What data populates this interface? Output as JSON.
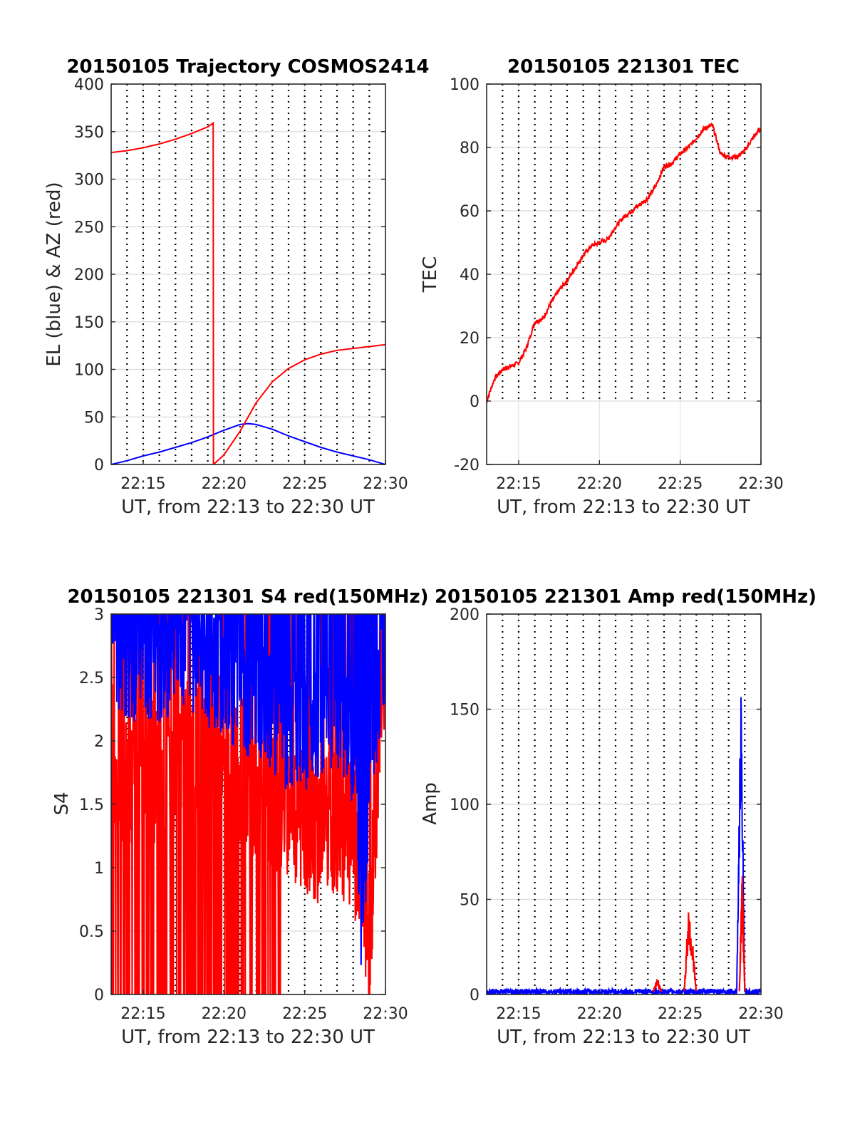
{
  "chart_data": [
    {
      "id": "trajectory",
      "type": "line",
      "title": "20150105 Trajectory COSMOS2414",
      "xlabel": "UT, from 22:13 to 22:30 UT",
      "ylabel": "EL (blue) & AZ (red)",
      "xlim": [
        "22:13:01",
        "22:30:00"
      ],
      "ylim": [
        0,
        400
      ],
      "yticks": [
        "0",
        "50",
        "100",
        "150",
        "200",
        "250",
        "300",
        "350",
        "400"
      ],
      "xticks": [
        "22:15",
        "22:20",
        "22:25",
        "22:30"
      ],
      "colors": {
        "EL": "#0000ff",
        "AZ": "#ff0000"
      },
      "series": [
        {
          "label": "EL",
          "x": [
            "22:13:01",
            "22:14:00",
            "22:15:00",
            "22:16:00",
            "22:17:00",
            "22:18:00",
            "22:19:00",
            "22:20:00",
            "22:21:00",
            "22:21:30",
            "22:22:00",
            "22:23:00",
            "22:24:00",
            "22:25:00",
            "22:26:00",
            "22:27:00",
            "22:28:00",
            "22:29:00",
            "22:30:00"
          ],
          "y": [
            0,
            4,
            9,
            13,
            18,
            23,
            29,
            36,
            42,
            43,
            42,
            37,
            30,
            24,
            18,
            13,
            9,
            5,
            0
          ]
        },
        {
          "label": "AZ",
          "x": [
            "22:13:01",
            "22:14:00",
            "22:15:00",
            "22:16:00",
            "22:17:00",
            "22:18:00",
            "22:19:00",
            "22:19:20",
            "22:19:21",
            "22:20:00",
            "22:21:00",
            "22:22:00",
            "22:23:00",
            "22:24:00",
            "22:25:00",
            "22:26:00",
            "22:27:00",
            "22:28:00",
            "22:29:00",
            "22:30:00"
          ],
          "y": [
            328,
            330,
            333,
            337,
            342,
            348,
            355,
            359,
            0,
            10,
            35,
            65,
            87,
            101,
            110,
            116,
            120,
            122,
            124,
            126
          ]
        }
      ]
    },
    {
      "id": "tec",
      "type": "line",
      "title": "20150105 221301 TEC",
      "xlabel": "UT, from 22:13 to 22:30 UT",
      "ylabel": "TEC",
      "xlim": [
        "22:13:01",
        "22:30:00"
      ],
      "ylim": [
        -20,
        100
      ],
      "yticks": [
        "-20",
        "0",
        "20",
        "40",
        "60",
        "80",
        "100"
      ],
      "xticks": [
        "22:15",
        "22:20",
        "22:25",
        "22:30"
      ],
      "colors": {
        "TEC": "#ff0000"
      },
      "series": [
        {
          "label": "TEC",
          "x": [
            "22:13:01",
            "22:13:30",
            "22:14:00",
            "22:14:30",
            "22:15:00",
            "22:15:30",
            "22:16:00",
            "22:16:30",
            "22:17:00",
            "22:17:30",
            "22:18:00",
            "22:18:30",
            "22:19:00",
            "22:19:30",
            "22:20:00",
            "22:20:30",
            "22:21:00",
            "22:21:30",
            "22:22:00",
            "22:22:30",
            "22:23:00",
            "22:23:30",
            "22:24:00",
            "22:24:30",
            "22:25:00",
            "22:25:30",
            "22:26:00",
            "22:26:30",
            "22:27:00",
            "22:27:30",
            "22:28:00",
            "22:28:30",
            "22:29:00",
            "22:29:30",
            "22:30:00"
          ],
          "y": [
            0,
            7,
            10,
            11,
            12,
            17,
            25,
            26,
            31,
            35,
            38,
            42,
            46,
            49,
            50,
            51,
            55,
            58,
            60,
            62,
            64,
            68,
            74,
            75,
            78,
            80,
            83,
            86,
            87,
            78,
            77,
            77,
            79,
            83,
            86
          ]
        }
      ]
    },
    {
      "id": "s4",
      "type": "line",
      "title": "20150105 221301 S4 red(150MHz)",
      "xlabel": "UT, from 22:13 to 22:30 UT",
      "ylabel": "S4",
      "xlim": [
        "22:13:01",
        "22:30:00"
      ],
      "ylim": [
        0,
        3
      ],
      "yticks": [
        "0",
        "0.5",
        "1",
        "1.5",
        "2",
        "2.5",
        "3"
      ],
      "xticks": [
        "22:15",
        "22:20",
        "22:25",
        "22:30"
      ],
      "colors": {
        "red": "#ff0000",
        "blue": "#0000ff"
      },
      "series": [
        {
          "label": "red",
          "x": [
            "22:13:01",
            "22:14:00",
            "22:15:00",
            "22:16:00",
            "22:17:00",
            "22:18:00",
            "22:19:00",
            "22:20:00",
            "22:21:00",
            "22:22:00",
            "22:23:00",
            "22:24:00",
            "22:25:00",
            "22:26:00",
            "22:27:00",
            "22:28:00",
            "22:28:30",
            "22:29:00",
            "22:30:00"
          ],
          "y": [
            1.9,
            1.6,
            1.7,
            1.8,
            1.9,
            2.0,
            2.1,
            2.0,
            1.8,
            1.6,
            1.5,
            1.5,
            1.4,
            1.3,
            1.4,
            1.2,
            1.0,
            0.4,
            2.9
          ]
        },
        {
          "label": "blue",
          "x": [
            "22:13:01",
            "22:14:00",
            "22:15:00",
            "22:16:00",
            "22:17:00",
            "22:18:00",
            "22:19:00",
            "22:20:00",
            "22:21:00",
            "22:22:00",
            "22:23:00",
            "22:24:00",
            "22:25:00",
            "22:26:00",
            "22:27:00",
            "22:28:00",
            "22:28:30",
            "22:29:00",
            "22:30:00"
          ],
          "y": [
            2.6,
            2.4,
            2.5,
            2.4,
            2.5,
            2.5,
            2.4,
            2.3,
            2.2,
            2.1,
            2.0,
            1.9,
            1.9,
            2.0,
            2.1,
            1.7,
            0.3,
            1.6,
            2.6
          ]
        }
      ]
    },
    {
      "id": "amp",
      "type": "line",
      "title": "20150105 221301 Amp red(150MHz)",
      "xlabel": "UT, from 22:13 to 22:30 UT",
      "ylabel": "Amp",
      "xlim": [
        "22:13:01",
        "22:30:00"
      ],
      "ylim": [
        0,
        200
      ],
      "yticks": [
        "0",
        "50",
        "100",
        "150",
        "200"
      ],
      "xticks": [
        "22:15",
        "22:20",
        "22:25",
        "22:30"
      ],
      "colors": {
        "red": "#ff0000",
        "blue": "#0000ff"
      },
      "series": [
        {
          "label": "blue",
          "x": [
            "22:13:01",
            "22:20:00",
            "22:25:00",
            "22:28:30",
            "22:28:45",
            "22:28:50",
            "22:29:00",
            "22:30:00"
          ],
          "y": [
            2,
            2,
            2,
            2,
            165,
            120,
            2,
            2
          ]
        },
        {
          "label": "red",
          "x": [
            "22:23:20",
            "22:23:35",
            "22:23:50",
            "22:25:15",
            "22:25:30",
            "22:25:45",
            "22:26:00",
            "22:28:40",
            "22:28:50",
            "22:29:00"
          ],
          "y": [
            2,
            9,
            2,
            2,
            45,
            30,
            2,
            2,
            70,
            2
          ]
        }
      ]
    }
  ]
}
